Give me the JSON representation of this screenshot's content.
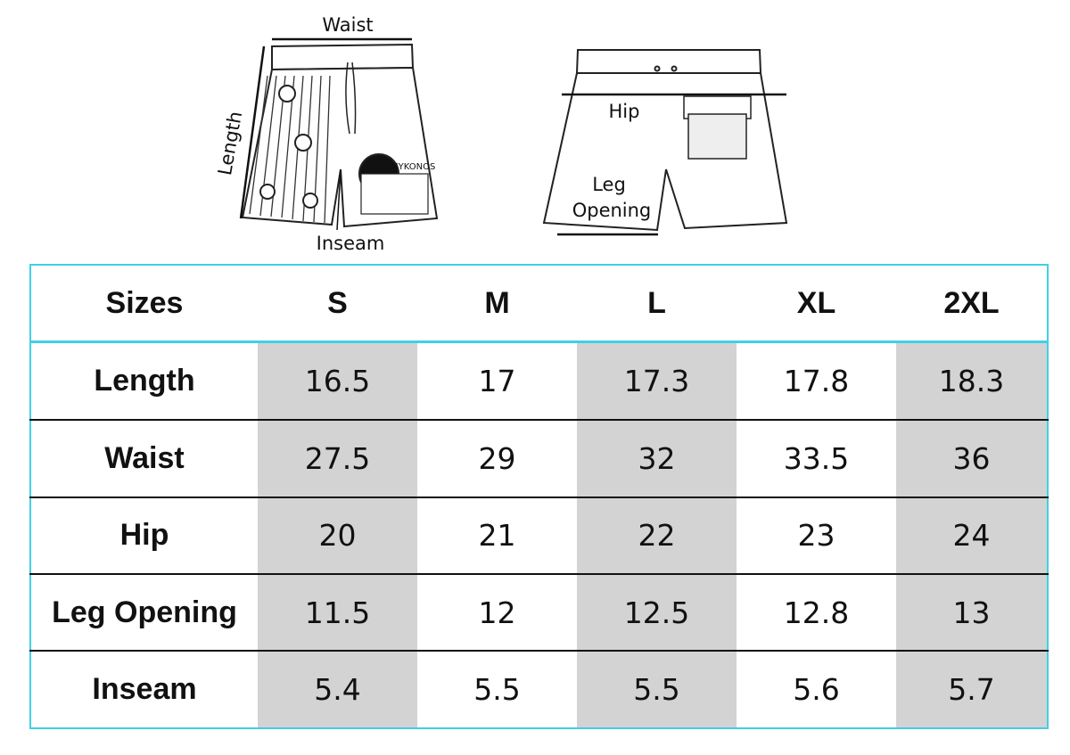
{
  "diagram": {
    "front": {
      "waist": "Waist",
      "length": "Length",
      "inseam": "Inseam",
      "print_text": "MYKONOS"
    },
    "back": {
      "hip": "Hip",
      "leg_opening": [
        "Leg",
        "Opening"
      ]
    }
  },
  "table": {
    "header": [
      "Sizes",
      "S",
      "M",
      "L",
      "XL",
      "2XL"
    ],
    "rows": [
      [
        "Length",
        "16.5",
        "17",
        "17.3",
        "17.8",
        "18.3"
      ],
      [
        "Waist",
        "27.5",
        "29",
        "32",
        "33.5",
        "36"
      ],
      [
        "Hip",
        "20",
        "21",
        "22",
        "23",
        "24"
      ],
      [
        "Leg Opening",
        "11.5",
        "12",
        "12.5",
        "12.8",
        "13"
      ],
      [
        "Inseam",
        "5.4",
        "5.5",
        "5.5",
        "5.6",
        "5.7"
      ]
    ]
  }
}
